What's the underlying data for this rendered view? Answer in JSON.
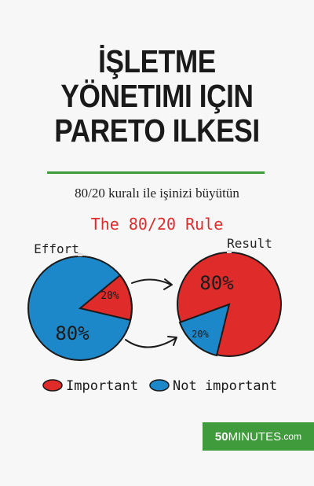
{
  "cover": {
    "title_lines": [
      "İŞLETME",
      "YÖNETIMI IÇIN",
      "PARETO ILKESI"
    ],
    "subtitle": "80/20 kuralı ile işinizi büyütün"
  },
  "illustration": {
    "heading": "The 80/20 Rule",
    "effort_label": "Effort",
    "result_label": "Result",
    "effort_big_label": "80%",
    "effort_small_label": "20%",
    "result_big_label": "80%",
    "result_small_label": "20%",
    "legend_important": "Important",
    "legend_not_important": "Not important",
    "colors": {
      "important": "#e02b2b",
      "not_important": "#1c88c9",
      "accent": "#3e9a3a"
    }
  },
  "chart_data": [
    {
      "type": "pie",
      "title": "Effort",
      "slices": [
        {
          "label": "80%",
          "value": 80,
          "category": "Not important"
        },
        {
          "label": "20%",
          "value": 20,
          "category": "Important"
        }
      ]
    },
    {
      "type": "pie",
      "title": "Result",
      "slices": [
        {
          "label": "80%",
          "value": 80,
          "category": "Important"
        },
        {
          "label": "20%",
          "value": 20,
          "category": "Not important"
        }
      ]
    }
  ],
  "publisher": {
    "prefix": "50",
    "name": "MINUTES",
    "suffix": ".com"
  }
}
